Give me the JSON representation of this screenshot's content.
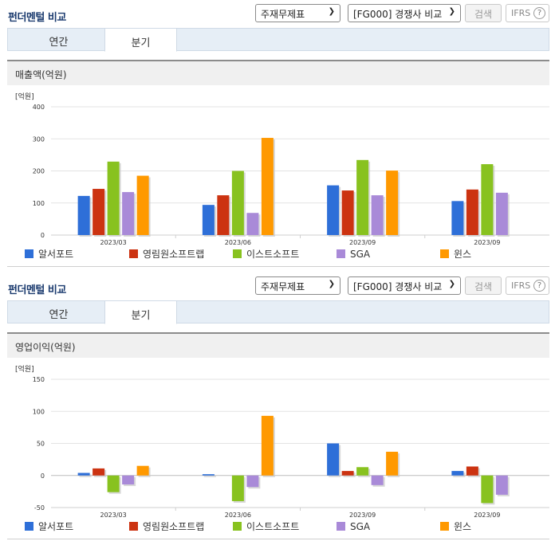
{
  "panels": [
    {
      "header": {
        "title": "펀더멘털 비교",
        "select1": "주재무제표",
        "select2": "[FG000] 경쟁사 비교",
        "search": "검색",
        "ifrs": "IFRS",
        "help": "?"
      },
      "tabs": [
        "연간",
        "분기"
      ],
      "active_tab": 1,
      "chart_title": "매출액(억원)"
    },
    {
      "header": {
        "title": "펀더멘털 비교",
        "select1": "주재무제표",
        "select2": "[FG000] 경쟁사 비교",
        "search": "검색",
        "ifrs": "IFRS",
        "help": "?"
      },
      "tabs": [
        "연간",
        "분기"
      ],
      "active_tab": 1,
      "chart_title": "영업이익(억원)"
    }
  ],
  "chart_data": [
    {
      "type": "bar",
      "title": "매출액(억원)",
      "unit_label": "[억원]",
      "categories": [
        "2023/03",
        "2023/06",
        "2023/09",
        "2023/09"
      ],
      "ylim": [
        0,
        400
      ],
      "yticks": [
        0,
        100,
        200,
        300,
        400
      ],
      "grid": true,
      "legend_position": "bottom",
      "series": [
        {
          "name": "알서포트",
          "color": "#2e6fd8",
          "values": [
            122,
            94,
            155,
            106
          ]
        },
        {
          "name": "영림원소프트랩",
          "color": "#cc3311",
          "values": [
            144,
            124,
            139,
            142
          ]
        },
        {
          "name": "이스트소프트",
          "color": "#88c21f",
          "values": [
            229,
            200,
            234,
            221
          ]
        },
        {
          "name": "SGA",
          "color": "#a98ad8",
          "values": [
            134,
            69,
            124,
            132
          ]
        },
        {
          "name": "윈스",
          "color": "#ff9900",
          "values": [
            185,
            303,
            201,
            null
          ]
        }
      ]
    },
    {
      "type": "bar",
      "title": "영업이익(억원)",
      "unit_label": "[억원]",
      "categories": [
        "2023/03",
        "2023/06",
        "2023/09",
        "2023/09"
      ],
      "ylim": [
        -50,
        150
      ],
      "yticks": [
        -50,
        0,
        50,
        100,
        150
      ],
      "grid": true,
      "legend_position": "bottom",
      "series": [
        {
          "name": "알서포트",
          "color": "#2e6fd8",
          "values": [
            4,
            2,
            50,
            7
          ]
        },
        {
          "name": "영림원소프트랩",
          "color": "#cc3311",
          "values": [
            11,
            null,
            7,
            14
          ]
        },
        {
          "name": "이스트소프트",
          "color": "#88c21f",
          "values": [
            -26,
            -40,
            13,
            -43
          ]
        },
        {
          "name": "SGA",
          "color": "#a98ad8",
          "values": [
            -14,
            -18,
            -15,
            -30
          ]
        },
        {
          "name": "윈스",
          "color": "#ff9900",
          "values": [
            15,
            93,
            37,
            null
          ]
        }
      ]
    }
  ]
}
